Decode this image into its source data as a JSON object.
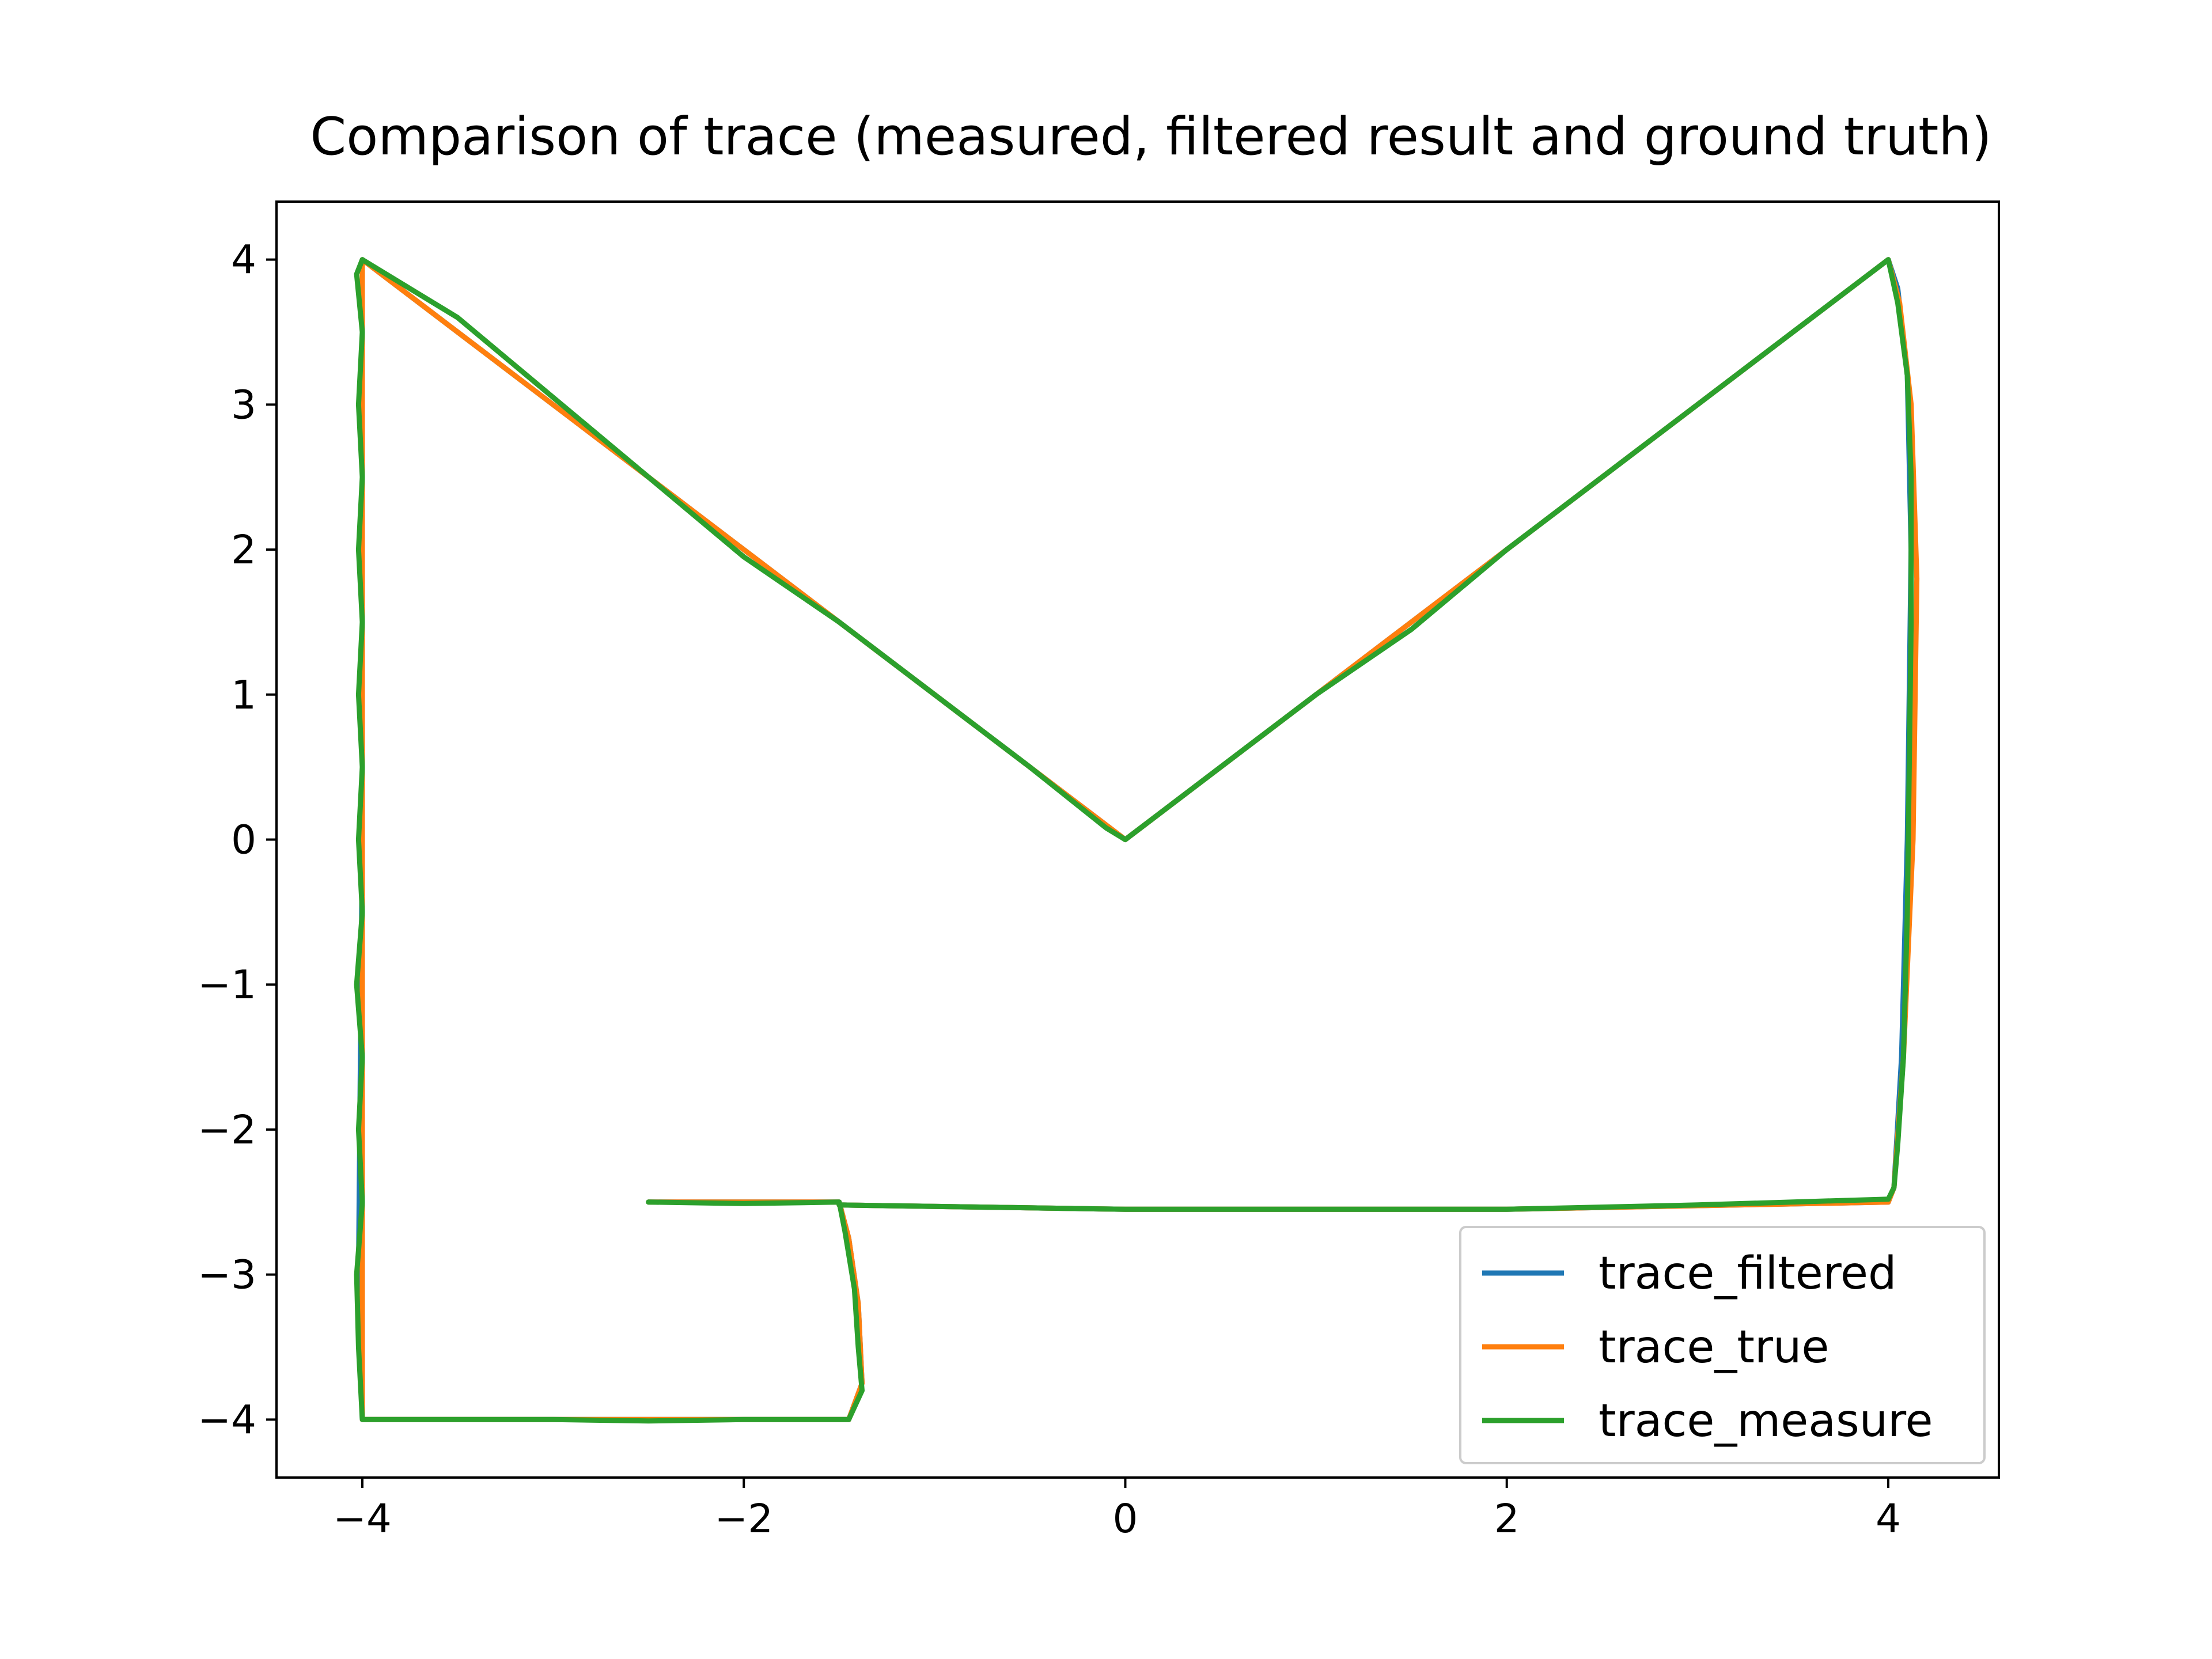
{
  "chart_data": {
    "type": "line",
    "title": "Comparison of trace (measured, filtered result and ground truth)",
    "xlabel": "",
    "ylabel": "",
    "xlim": [
      -4.45,
      4.58
    ],
    "ylim": [
      -4.4,
      4.4
    ],
    "xticks": [
      {
        "value": -4,
        "label": "−4"
      },
      {
        "value": -2,
        "label": "−2"
      },
      {
        "value": 0,
        "label": "0"
      },
      {
        "value": 2,
        "label": "2"
      },
      {
        "value": 4,
        "label": "4"
      }
    ],
    "yticks": [
      {
        "value": 4,
        "label": "4"
      },
      {
        "value": 3,
        "label": "3"
      },
      {
        "value": 2,
        "label": "2"
      },
      {
        "value": 1,
        "label": "1"
      },
      {
        "value": 0,
        "label": "0"
      },
      {
        "value": -1,
        "label": "−1"
      },
      {
        "value": -2,
        "label": "−2"
      },
      {
        "value": -3,
        "label": "−3"
      },
      {
        "value": -4,
        "label": "−4"
      }
    ],
    "grid": false,
    "legend_position": "lower-right",
    "series": [
      {
        "name": "trace_filtered",
        "color": "#1f77b4",
        "points": [
          [
            -2.5,
            -2.5
          ],
          [
            -1.5,
            -2.5
          ],
          [
            -1.45,
            -2.75
          ],
          [
            -1.4,
            -3.2
          ],
          [
            -1.38,
            -3.75
          ],
          [
            -1.45,
            -4.0
          ],
          [
            -4.0,
            -4.0
          ],
          [
            -4.02,
            -3.0
          ],
          [
            -4.0,
            0.0
          ],
          [
            -4.0,
            3.0
          ],
          [
            -4.0,
            4.0
          ],
          [
            -2.0,
            2.0
          ],
          [
            0.0,
            0.0
          ],
          [
            2.0,
            2.0
          ],
          [
            4.0,
            4.0
          ],
          [
            4.05,
            3.8
          ],
          [
            4.1,
            3.2
          ],
          [
            4.12,
            2.0
          ],
          [
            4.1,
            0.0
          ],
          [
            4.07,
            -1.5
          ],
          [
            4.03,
            -2.4
          ],
          [
            4.0,
            -2.5
          ],
          [
            2.0,
            -2.55
          ],
          [
            0.0,
            -2.55
          ],
          [
            -1.5,
            -2.52
          ]
        ]
      },
      {
        "name": "trace_true",
        "color": "#ff7f0e",
        "points": [
          [
            -2.5,
            -2.5
          ],
          [
            -1.5,
            -2.5
          ],
          [
            -1.45,
            -2.75
          ],
          [
            -1.4,
            -3.2
          ],
          [
            -1.38,
            -3.75
          ],
          [
            -1.45,
            -4.0
          ],
          [
            -4.0,
            -4.0
          ],
          [
            -4.0,
            -3.0
          ],
          [
            -4.0,
            0.0
          ],
          [
            -4.0,
            3.0
          ],
          [
            -4.0,
            4.0
          ],
          [
            -2.0,
            2.0
          ],
          [
            0.0,
            0.0
          ],
          [
            2.0,
            2.0
          ],
          [
            4.0,
            4.0
          ],
          [
            4.06,
            3.7
          ],
          [
            4.12,
            3.0
          ],
          [
            4.15,
            1.8
          ],
          [
            4.13,
            0.0
          ],
          [
            4.08,
            -1.5
          ],
          [
            4.03,
            -2.4
          ],
          [
            4.0,
            -2.5
          ],
          [
            2.0,
            -2.55
          ],
          [
            0.0,
            -2.55
          ],
          [
            -1.5,
            -2.52
          ]
        ]
      },
      {
        "name": "trace_measure",
        "color": "#2ca02c",
        "points": [
          [
            -2.5,
            -2.5
          ],
          [
            -2.0,
            -2.51
          ],
          [
            -1.5,
            -2.5
          ],
          [
            -1.47,
            -2.7
          ],
          [
            -1.42,
            -3.1
          ],
          [
            -1.4,
            -3.5
          ],
          [
            -1.38,
            -3.8
          ],
          [
            -1.45,
            -4.0
          ],
          [
            -2.0,
            -4.0
          ],
          [
            -2.5,
            -4.01
          ],
          [
            -3.0,
            -4.0
          ],
          [
            -3.5,
            -4.0
          ],
          [
            -4.0,
            -4.0
          ],
          [
            -4.02,
            -3.5
          ],
          [
            -4.03,
            -3.0
          ],
          [
            -4.0,
            -2.5
          ],
          [
            -4.02,
            -2.0
          ],
          [
            -4.0,
            -1.5
          ],
          [
            -4.03,
            -1.0
          ],
          [
            -4.0,
            -0.5
          ],
          [
            -4.02,
            0.0
          ],
          [
            -4.0,
            0.5
          ],
          [
            -4.02,
            1.0
          ],
          [
            -4.0,
            1.5
          ],
          [
            -4.02,
            2.0
          ],
          [
            -4.0,
            2.5
          ],
          [
            -4.02,
            3.0
          ],
          [
            -4.0,
            3.5
          ],
          [
            -4.03,
            3.9
          ],
          [
            -4.0,
            4.0
          ],
          [
            -3.5,
            3.6
          ],
          [
            -3.0,
            3.05
          ],
          [
            -2.5,
            2.5
          ],
          [
            -2.0,
            1.95
          ],
          [
            -1.5,
            1.5
          ],
          [
            -1.0,
            1.0
          ],
          [
            -0.5,
            0.5
          ],
          [
            -0.1,
            0.08
          ],
          [
            0.0,
            0.0
          ],
          [
            0.5,
            0.5
          ],
          [
            1.0,
            1.0
          ],
          [
            1.5,
            1.45
          ],
          [
            2.0,
            2.0
          ],
          [
            2.5,
            2.5
          ],
          [
            3.0,
            3.0
          ],
          [
            3.5,
            3.5
          ],
          [
            4.0,
            4.0
          ],
          [
            4.05,
            3.7
          ],
          [
            4.1,
            3.2
          ],
          [
            4.12,
            2.5
          ],
          [
            4.12,
            1.5
          ],
          [
            4.11,
            0.5
          ],
          [
            4.1,
            -0.5
          ],
          [
            4.08,
            -1.5
          ],
          [
            4.05,
            -2.1
          ],
          [
            4.03,
            -2.4
          ],
          [
            4.0,
            -2.48
          ],
          [
            3.0,
            -2.52
          ],
          [
            2.0,
            -2.55
          ],
          [
            1.0,
            -2.55
          ],
          [
            0.0,
            -2.55
          ],
          [
            -1.0,
            -2.53
          ],
          [
            -1.5,
            -2.52
          ]
        ]
      }
    ]
  }
}
